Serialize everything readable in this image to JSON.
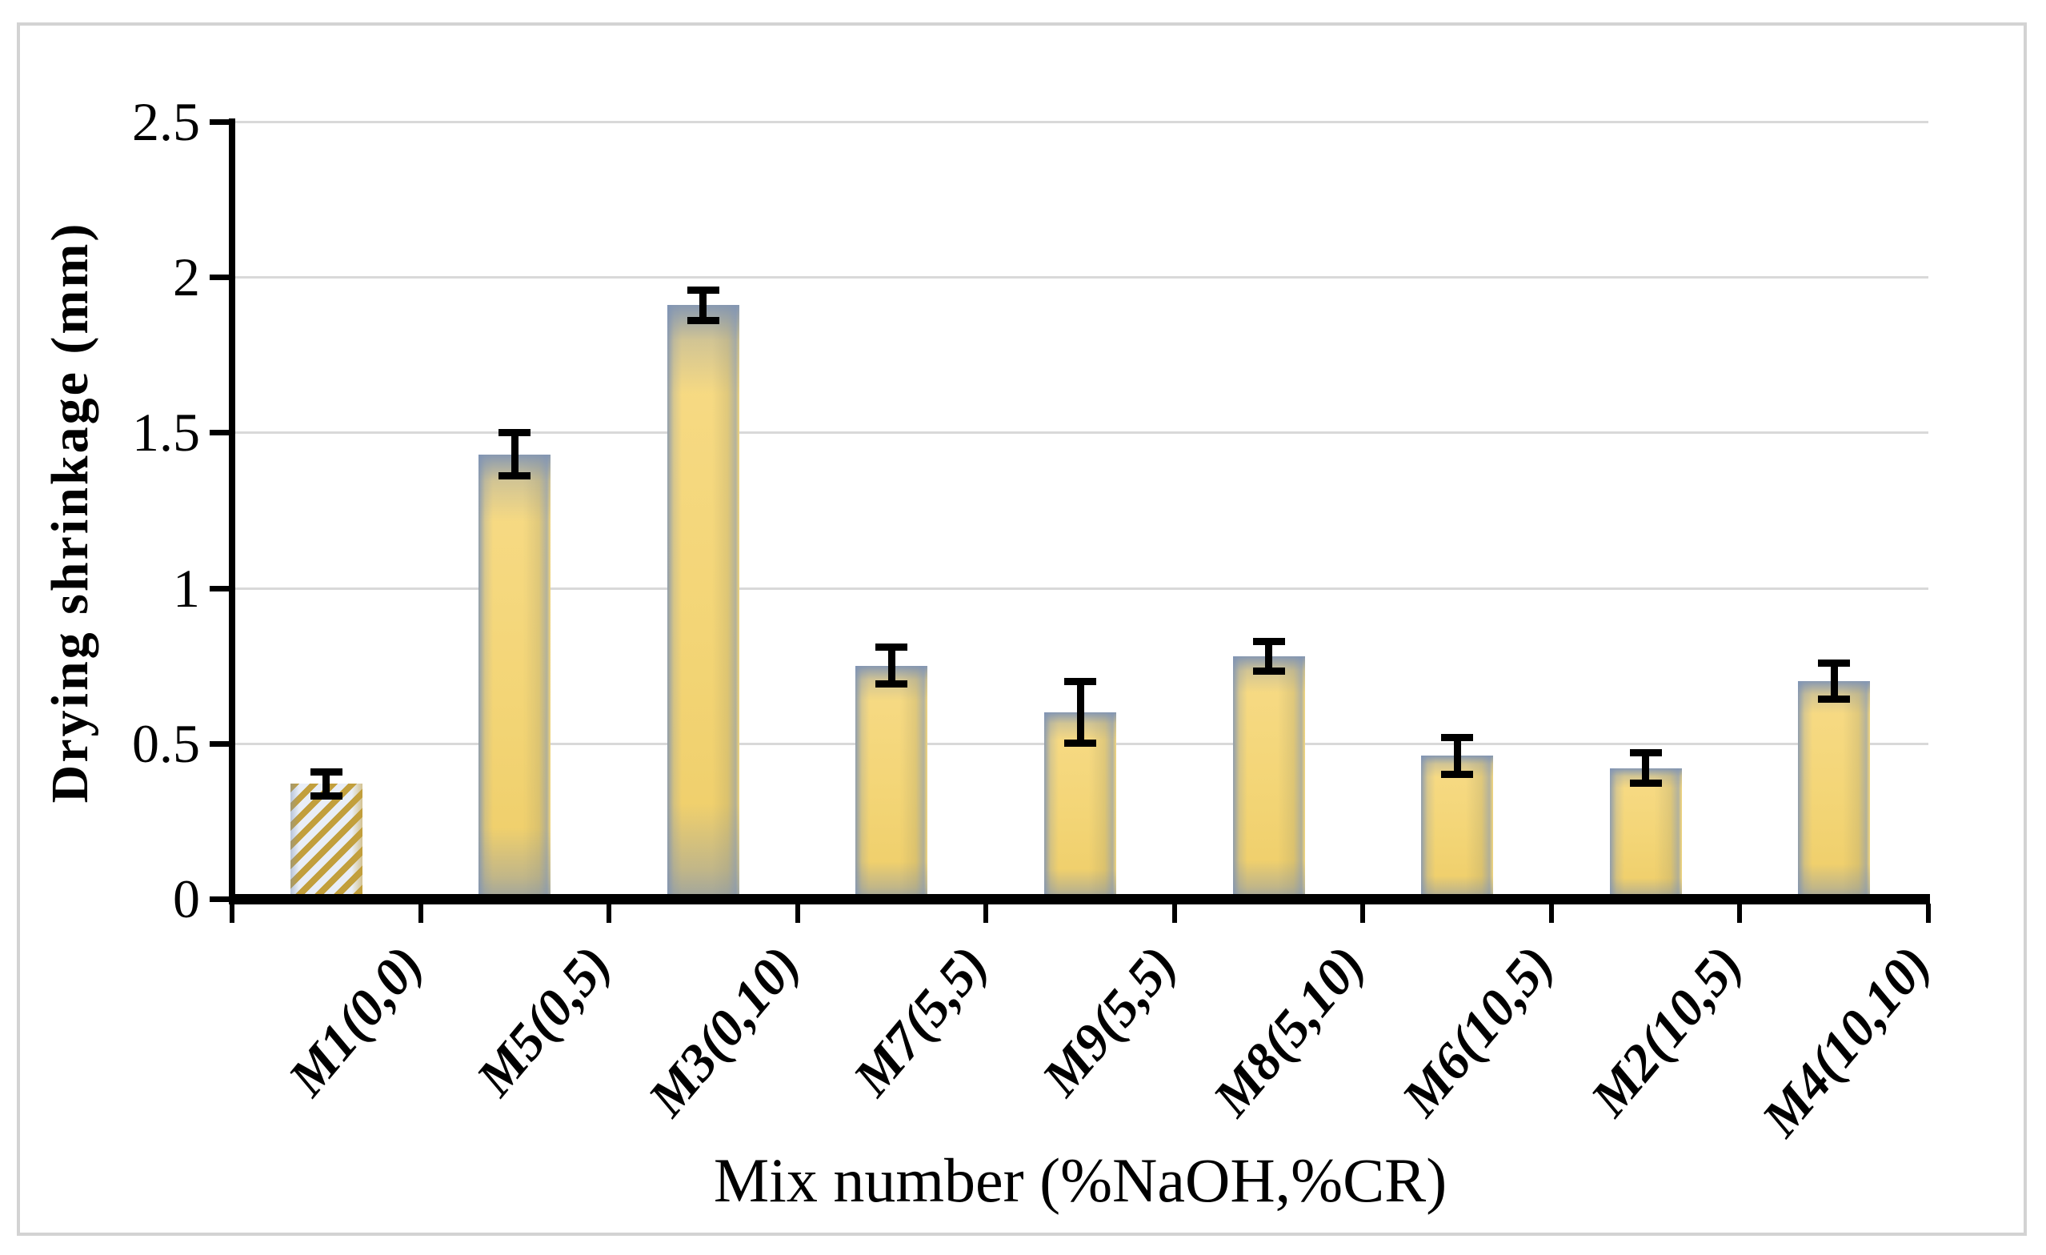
{
  "chart_data": {
    "type": "bar",
    "title": "",
    "xlabel": "Mix number (%NaOH,%CR)",
    "ylabel": "Drying shrinkage (mm)",
    "categories": [
      "M1(0,0)",
      "M5(0,5)",
      "M3(0,10)",
      "M7(5,5)",
      "M9(5,5)",
      "M8(5,10)",
      "M6(10,5)",
      "M2(10,5)",
      "M4(10,10)"
    ],
    "values": [
      0.37,
      1.43,
      1.91,
      0.75,
      0.6,
      0.78,
      0.46,
      0.42,
      0.7
    ],
    "error_bars": [
      0.04,
      0.07,
      0.05,
      0.06,
      0.1,
      0.05,
      0.06,
      0.05,
      0.06
    ],
    "ylim": [
      0,
      2.5
    ],
    "ytick_step": 0.5,
    "ytick_labels": [
      "0",
      "0.5",
      "1",
      "1.5",
      "2",
      "2.5"
    ],
    "grid": "horizontal-gridlines",
    "legend_position": "none",
    "pattern_bar_index": 0,
    "pattern_bar_category": "M1(0,0)",
    "colors": {
      "bar_fill": "#F4D77B",
      "bar_edge_shade": "#7E93B5",
      "stripe_gold": "#C29F3C",
      "stripe_light": "#E9EEF7",
      "error_bar": "#000000",
      "gridline": "#D9D9D9",
      "axis": "#000000",
      "figure_border": "#D3D3D3",
      "background": "#FFFFFF"
    }
  }
}
